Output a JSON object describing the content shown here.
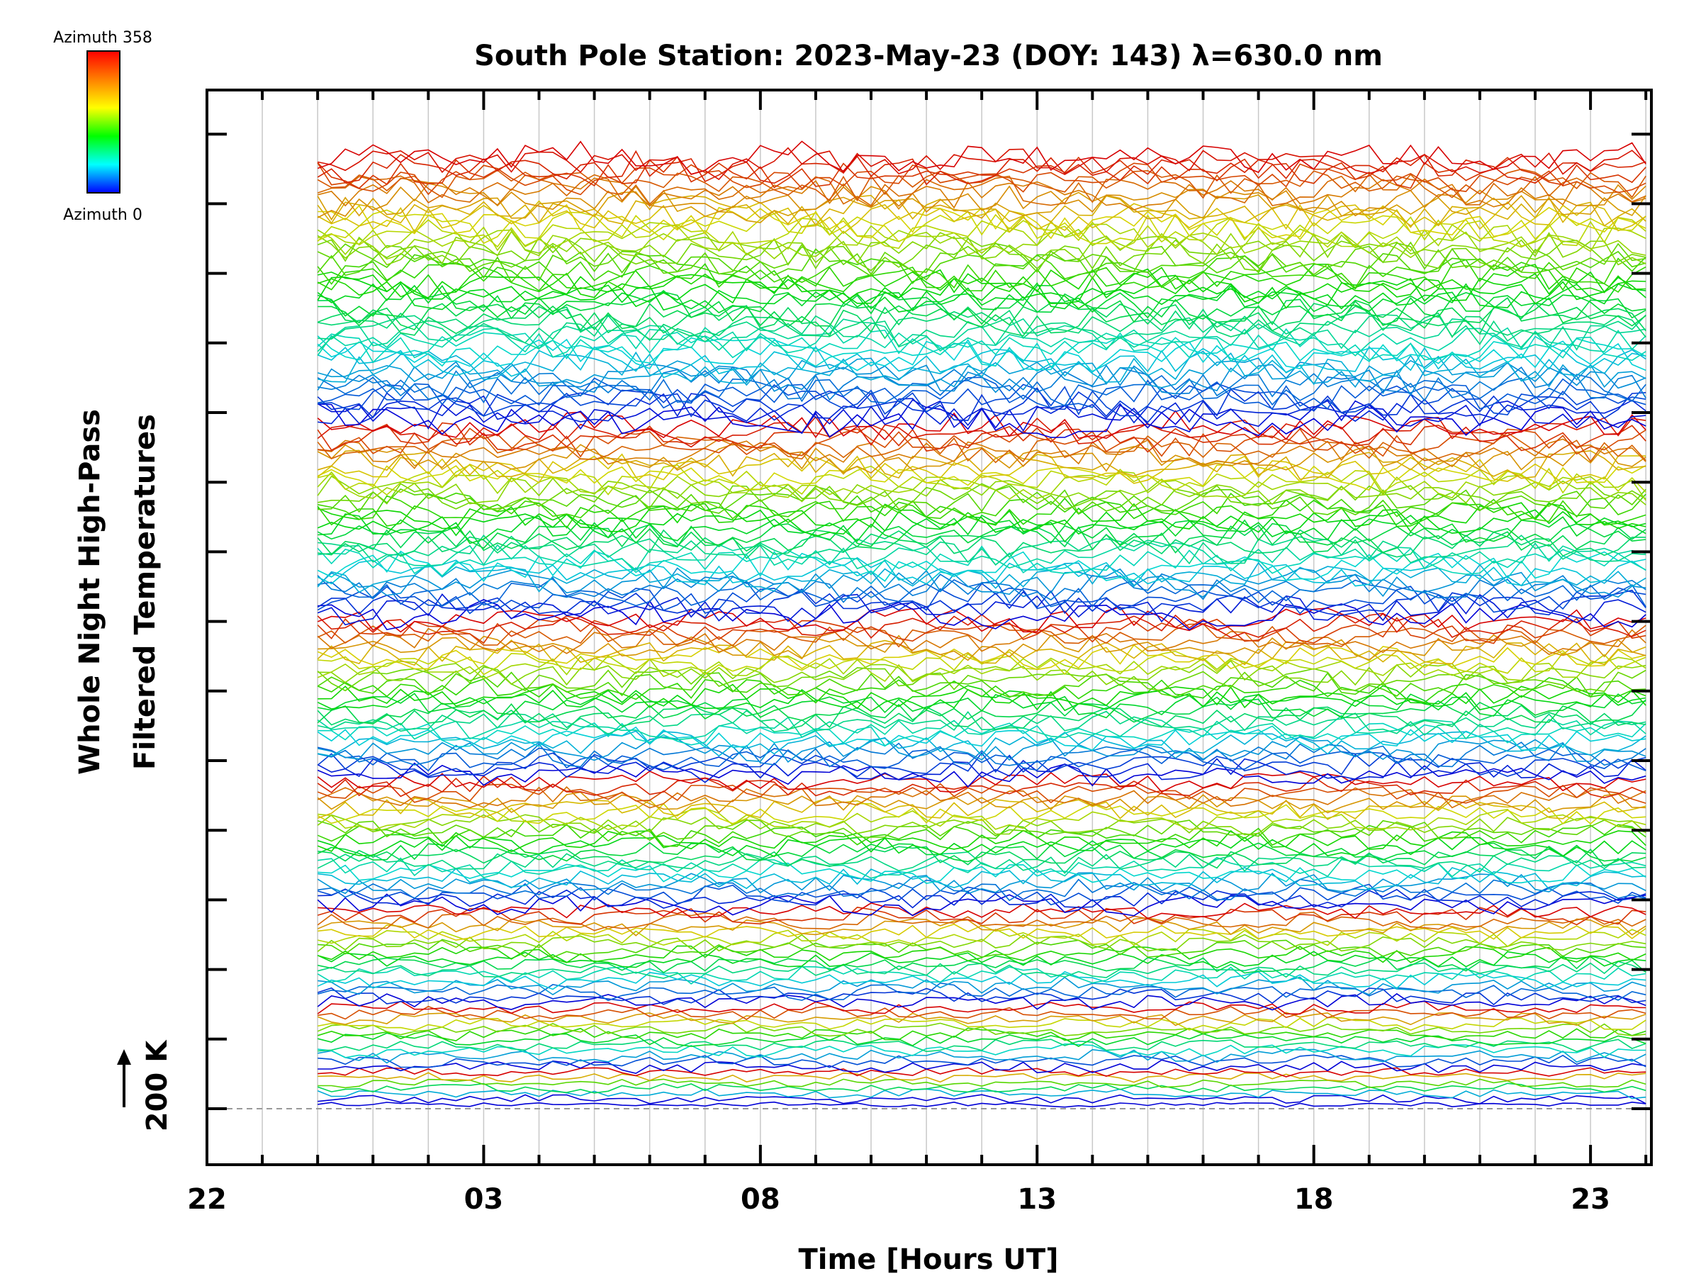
{
  "chart_data": {
    "type": "line",
    "title": "South Pole Station: 2023-May-23 (DOY: 143) λ=630.0 nm",
    "xlabel": "Time [Hours UT]",
    "ylabel_line1": "Whole Night High-Pass",
    "ylabel_line2": "Filtered Temperatures",
    "scale_label": "200 K",
    "x_tick_labels": [
      "22",
      "03",
      "08",
      "13",
      "18",
      "23"
    ],
    "x_tick_hours": [
      22,
      27,
      32,
      37,
      42,
      47
    ],
    "xlim_hours": [
      22,
      48.1
    ],
    "data_start_hour": 24.0,
    "data_end_hour": 48.0,
    "y_ticks": 15,
    "colorbar": {
      "top_label": "Azimuth 358",
      "bottom_label": "Azimuth 0",
      "colors": [
        "#ff0000",
        "#ff8000",
        "#ffff00",
        "#00ff00",
        "#00ffff",
        "#0000ff"
      ]
    },
    "series_count": 177,
    "ring_sizes": [
      1,
      6,
      12,
      18,
      24,
      30,
      36,
      50
    ],
    "colors": {
      "frame": "#000000",
      "grid": "#c8c8c8",
      "baseline": "#999999"
    }
  }
}
